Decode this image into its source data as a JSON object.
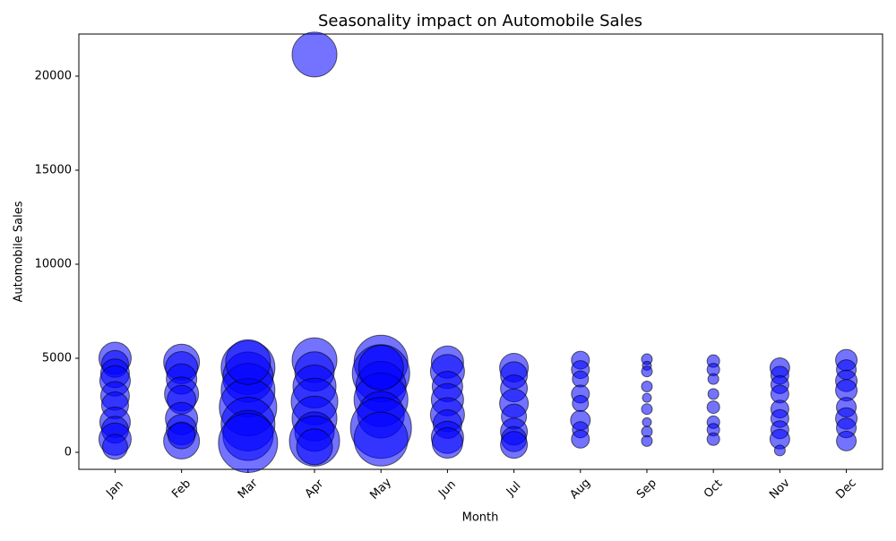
{
  "chart_data": {
    "type": "bubble",
    "title": "Seasonality impact on Automobile Sales",
    "xlabel": "Month",
    "ylabel": "Automobile Sales",
    "categories": [
      "Jan",
      "Feb",
      "Mar",
      "Apr",
      "May",
      "Jun",
      "Jul",
      "Aug",
      "Sep",
      "Oct",
      "Nov",
      "Dec"
    ],
    "x": [
      "Jan",
      "Jan",
      "Jan",
      "Jan",
      "Jan",
      "Jan",
      "Jan",
      "Jan",
      "Jan",
      "Jan",
      "Feb",
      "Feb",
      "Feb",
      "Feb",
      "Feb",
      "Feb",
      "Feb",
      "Feb",
      "Feb",
      "Mar",
      "Mar",
      "Mar",
      "Mar",
      "Mar",
      "Mar",
      "Mar",
      "Mar",
      "Apr",
      "Apr",
      "Apr",
      "Apr",
      "Apr",
      "Apr",
      "Apr",
      "Apr",
      "Apr",
      "May",
      "May",
      "May",
      "May",
      "May",
      "May",
      "May",
      "May",
      "Jun",
      "Jun",
      "Jun",
      "Jun",
      "Jun",
      "Jun",
      "Jun",
      "Jun",
      "Jul",
      "Jul",
      "Jul",
      "Jul",
      "Jul",
      "Jul",
      "Jul",
      "Jul",
      "Aug",
      "Aug",
      "Aug",
      "Aug",
      "Aug",
      "Aug",
      "Aug",
      "Aug",
      "Sep",
      "Sep",
      "Sep",
      "Sep",
      "Sep",
      "Sep",
      "Sep",
      "Sep",
      "Sep",
      "Oct",
      "Oct",
      "Oct",
      "Oct",
      "Oct",
      "Oct",
      "Oct",
      "Oct",
      "Nov",
      "Nov",
      "Nov",
      "Nov",
      "Nov",
      "Nov",
      "Nov",
      "Nov",
      "Nov",
      "Dec",
      "Dec",
      "Dec",
      "Dec",
      "Dec",
      "Dec",
      "Dec",
      "Dec"
    ],
    "values": [
      5000,
      4700,
      4200,
      3800,
      3000,
      2500,
      1600,
      1200,
      700,
      300,
      4800,
      4500,
      3900,
      3100,
      2800,
      1800,
      1200,
      600,
      900,
      4500,
      4000,
      3300,
      2400,
      1500,
      900,
      500,
      4800,
      21150,
      4900,
      4300,
      3500,
      2700,
      1800,
      1100,
      600,
      300,
      4800,
      4200,
      3500,
      2800,
      2000,
      1300,
      700,
      4500,
      4800,
      4300,
      3500,
      2800,
      2000,
      1500,
      800,
      500,
      4500,
      4100,
      3400,
      2600,
      1900,
      1100,
      700,
      400,
      4900,
      4400,
      3900,
      3100,
      2600,
      1700,
      1200,
      700,
      4950,
      4600,
      4300,
      3500,
      2900,
      2300,
      1600,
      1100,
      600,
      4850,
      4400,
      3900,
      3100,
      2400,
      1600,
      1200,
      700,
      4500,
      4100,
      3600,
      3100,
      2300,
      1800,
      1200,
      700,
      100,
      4900,
      4400,
      3800,
      3300,
      2400,
      1800,
      1300,
      600
    ],
    "sizes": [
      324,
      225,
      256,
      289,
      256,
      225,
      289,
      225,
      324,
      196,
      400,
      324,
      289,
      361,
      256,
      324,
      289,
      400,
      225,
      900,
      784,
      900,
      1024,
      900,
      784,
      1089,
      625,
      625,
      625,
      484,
      576,
      676,
      625,
      484,
      784,
      400,
      900,
      1024,
      784,
      900,
      676,
      1156,
      900,
      625,
      324,
      361,
      289,
      324,
      361,
      256,
      324,
      289,
      256,
      225,
      225,
      256,
      196,
      225,
      196,
      225,
      100,
      100,
      81,
      100,
      81,
      121,
      81,
      100,
      36,
      25,
      36,
      36,
      25,
      36,
      25,
      36,
      36,
      49,
      49,
      36,
      36,
      49,
      49,
      49,
      49,
      121,
      100,
      100,
      100,
      100,
      100,
      100,
      121,
      36,
      144,
      121,
      144,
      144,
      121,
      144,
      121,
      121
    ],
    "color": "#0000ff",
    "ylim": [
      -905,
      22238
    ],
    "yticks": [
      0,
      5000,
      10000,
      15000,
      20000
    ]
  }
}
